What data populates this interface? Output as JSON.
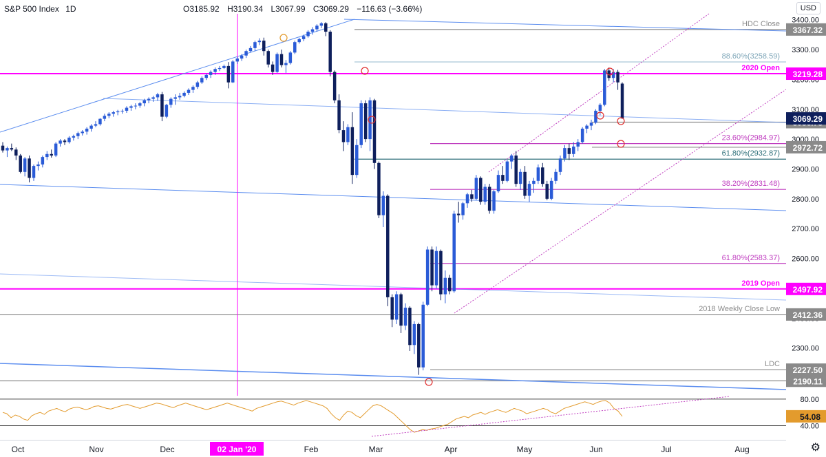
{
  "header": {
    "symbol": "S&P 500 Index",
    "interval": "1D",
    "open": "O3185.92",
    "high": "H3190.34",
    "low": "L3067.99",
    "close": "C3069.29",
    "change": "−116.63 (−3.66%)",
    "currency": "USD"
  },
  "colors": {
    "up": "#2a5bd7",
    "down": "#0e1f5c",
    "magenta": "#ff00ff",
    "fib": "#c03fc0",
    "teal": "#2c6e78",
    "gray": "#8c8c8c",
    "rsi": "#e39b2d",
    "trend": "#5b8def"
  },
  "chart_data": {
    "type": "candlestick",
    "title": "S&P 500 Index, 1D",
    "price_range": [
      2140,
      3420
    ],
    "x_labels": [
      "Oct",
      "Nov",
      "Dec",
      "Feb",
      "Mar",
      "Apr",
      "May",
      "Jun",
      "Jul",
      "Aug"
    ],
    "highlighted_x_label": "02 Jan '20",
    "y_ticks": [
      "3400.00",
      "3300.00",
      "3200.00",
      "3100.00",
      "3000.00",
      "2900.00",
      "2800.00",
      "2700.00",
      "2600.00",
      "2500.00",
      "2400.00",
      "2300.00",
      "2200.00"
    ],
    "levels": [
      {
        "price": 3367.32,
        "label": "HDC Close",
        "axis": "3367.32",
        "color": "#8c8c8c"
      },
      {
        "price": 3258.59,
        "label": "88.60%(3258.59)",
        "axis": "",
        "color": "#a9c8d6"
      },
      {
        "price": 3219.28,
        "label": "2020 Open",
        "axis": "3219.28",
        "color": "#ff00ff"
      },
      {
        "price": 3056.78,
        "label": "",
        "axis": "3056.78",
        "color": "#8c8c8c"
      },
      {
        "price": 2984.97,
        "label": "23.60%(2984.97)",
        "axis": "",
        "color": "#c03fc0"
      },
      {
        "price": 2972.72,
        "label": "",
        "axis": "2972.72",
        "color": "#8c8c8c"
      },
      {
        "price": 2932.87,
        "label": "61.80%(2932.87)",
        "axis": "",
        "color": "#2c6e78"
      },
      {
        "price": 2831.48,
        "label": "38.20%(2831.48)",
        "axis": "",
        "color": "#c03fc0"
      },
      {
        "price": 2583.37,
        "label": "61.80%(2583.37)",
        "axis": "",
        "color": "#c03fc0"
      },
      {
        "price": 2497.92,
        "label": "2019 Open",
        "axis": "2497.92",
        "color": "#ff00ff"
      },
      {
        "price": 2412.36,
        "label": "2018 Weekly Close Low",
        "axis": "2412.36",
        "color": "#8c8c8c"
      },
      {
        "price": 2227.5,
        "label": "LDC",
        "axis": "2227.50",
        "color": "#8c8c8c"
      },
      {
        "price": 2190.11,
        "label": "",
        "axis": "2190.11",
        "color": "#8c8c8c"
      }
    ],
    "last_price_tag": "3069.29",
    "rsi": {
      "ticks": [
        "80.00",
        "40.00"
      ],
      "last": "54.08",
      "range": [
        28,
        82
      ],
      "values": [
        60,
        58,
        52,
        56,
        54,
        50,
        48,
        55,
        58,
        60,
        57,
        62,
        64,
        66,
        63,
        61,
        65,
        67,
        68,
        66,
        64,
        66,
        69,
        70,
        68,
        66,
        65,
        67,
        69,
        71,
        72,
        70,
        68,
        66,
        68,
        70,
        72,
        74,
        73,
        71,
        69,
        67,
        70,
        72,
        74,
        72,
        70,
        68,
        66,
        64,
        66,
        68,
        70,
        72,
        74,
        72,
        70,
        68,
        66,
        64,
        62,
        66,
        68,
        70,
        72,
        74,
        76,
        77,
        75,
        73,
        71,
        74,
        76,
        78,
        76,
        74,
        72,
        70,
        66,
        58,
        52,
        48,
        56,
        62,
        60,
        55,
        52,
        58,
        64,
        70,
        72,
        70,
        66,
        62,
        58,
        52,
        46,
        40,
        34,
        30,
        32,
        34,
        33,
        35,
        36,
        38,
        40,
        42,
        46,
        50,
        52,
        54,
        52,
        56,
        58,
        60,
        57,
        60,
        62,
        64,
        62,
        60,
        63,
        66,
        64,
        62,
        58,
        60,
        62,
        64,
        66,
        64,
        60,
        58,
        62,
        66,
        68,
        70,
        72,
        74,
        76,
        74,
        72,
        75,
        77,
        78,
        74,
        66,
        62,
        54.08
      ]
    },
    "candles": [
      [
        2978,
        2990,
        2955,
        2962
      ],
      [
        2962,
        2975,
        2940,
        2970
      ],
      [
        2970,
        2985,
        2960,
        2965
      ],
      [
        2965,
        2972,
        2930,
        2945
      ],
      [
        2945,
        2950,
        2885,
        2890
      ],
      [
        2890,
        2940,
        2875,
        2935
      ],
      [
        2935,
        2945,
        2855,
        2870
      ],
      [
        2870,
        2915,
        2860,
        2910
      ],
      [
        2910,
        2925,
        2895,
        2915
      ],
      [
        2915,
        2945,
        2905,
        2940
      ],
      [
        2940,
        2960,
        2930,
        2950
      ],
      [
        2950,
        2965,
        2938,
        2945
      ],
      [
        2945,
        2990,
        2940,
        2985
      ],
      [
        2985,
        3000,
        2975,
        2995
      ],
      [
        2995,
        3000,
        2980,
        2990
      ],
      [
        2990,
        3010,
        2985,
        3005
      ],
      [
        3005,
        3015,
        2995,
        3010
      ],
      [
        3010,
        3025,
        3000,
        3020
      ],
      [
        3020,
        3030,
        3012,
        3025
      ],
      [
        3025,
        3040,
        3015,
        3035
      ],
      [
        3035,
        3050,
        3025,
        3045
      ],
      [
        3045,
        3060,
        3040,
        3050
      ],
      [
        3050,
        3070,
        3045,
        3068
      ],
      [
        3068,
        3085,
        3060,
        3078
      ],
      [
        3078,
        3090,
        3070,
        3085
      ],
      [
        3085,
        3095,
        3075,
        3090
      ],
      [
        3090,
        3098,
        3080,
        3093
      ],
      [
        3093,
        3100,
        3085,
        3095
      ],
      [
        3095,
        3110,
        3088,
        3105
      ],
      [
        3105,
        3115,
        3095,
        3110
      ],
      [
        3110,
        3120,
        3100,
        3112
      ],
      [
        3112,
        3125,
        3105,
        3120
      ],
      [
        3120,
        3135,
        3110,
        3130
      ],
      [
        3130,
        3140,
        3120,
        3135
      ],
      [
        3135,
        3145,
        3125,
        3140
      ],
      [
        3140,
        3155,
        3128,
        3150
      ],
      [
        3150,
        3158,
        3060,
        3075
      ],
      [
        3075,
        3118,
        3070,
        3115
      ],
      [
        3115,
        3140,
        3105,
        3135
      ],
      [
        3135,
        3150,
        3115,
        3140
      ],
      [
        3140,
        3155,
        3132,
        3145
      ],
      [
        3145,
        3160,
        3140,
        3155
      ],
      [
        3155,
        3170,
        3148,
        3165
      ],
      [
        3165,
        3180,
        3155,
        3175
      ],
      [
        3175,
        3195,
        3168,
        3190
      ],
      [
        3190,
        3210,
        3185,
        3205
      ],
      [
        3205,
        3220,
        3198,
        3215
      ],
      [
        3215,
        3230,
        3205,
        3225
      ],
      [
        3225,
        3240,
        3215,
        3235
      ],
      [
        3235,
        3245,
        3228,
        3238
      ],
      [
        3238,
        3250,
        3235,
        3245
      ],
      [
        3245,
        3258,
        3170,
        3190
      ],
      [
        3190,
        3265,
        3188,
        3260
      ],
      [
        3260,
        3275,
        3252,
        3270
      ],
      [
        3270,
        3285,
        3262,
        3280
      ],
      [
        3280,
        3300,
        3272,
        3295
      ],
      [
        3295,
        3312,
        3290,
        3305
      ],
      [
        3305,
        3330,
        3295,
        3325
      ],
      [
        3325,
        3338,
        3315,
        3330
      ],
      [
        3330,
        3340,
        3280,
        3295
      ],
      [
        3295,
        3300,
        3240,
        3250
      ],
      [
        3250,
        3260,
        3215,
        3225
      ],
      [
        3225,
        3290,
        3222,
        3285
      ],
      [
        3285,
        3300,
        3240,
        3248
      ],
      [
        3248,
        3265,
        3222,
        3255
      ],
      [
        3255,
        3295,
        3250,
        3290
      ],
      [
        3290,
        3330,
        3285,
        3325
      ],
      [
        3325,
        3340,
        3320,
        3335
      ],
      [
        3335,
        3350,
        3328,
        3345
      ],
      [
        3345,
        3365,
        3340,
        3360
      ],
      [
        3360,
        3375,
        3350,
        3368
      ],
      [
        3368,
        3385,
        3360,
        3380
      ],
      [
        3380,
        3392,
        3372,
        3388
      ],
      [
        3388,
        3392,
        3345,
        3360
      ],
      [
        3360,
        3365,
        3210,
        3225
      ],
      [
        3225,
        3230,
        3120,
        3130
      ],
      [
        3130,
        3150,
        3020,
        3030
      ],
      [
        3030,
        3060,
        2960,
        2990
      ],
      [
        2990,
        3050,
        2980,
        3040
      ],
      [
        3040,
        3090,
        2850,
        2880
      ],
      [
        2880,
        3000,
        2870,
        2980
      ],
      [
        2980,
        3130,
        2970,
        3120
      ],
      [
        3120,
        3130,
        2990,
        3000
      ],
      [
        3000,
        3140,
        2960,
        3130
      ],
      [
        3130,
        3135,
        2900,
        2920
      ],
      [
        2920,
        2925,
        2735,
        2745
      ],
      [
        2745,
        2825,
        2705,
        2810
      ],
      [
        2810,
        2815,
        2440,
        2470
      ],
      [
        2470,
        2480,
        2370,
        2395
      ],
      [
        2395,
        2490,
        2380,
        2480
      ],
      [
        2480,
        2485,
        2350,
        2375
      ],
      [
        2375,
        2450,
        2360,
        2435
      ],
      [
        2435,
        2440,
        2290,
        2310
      ],
      [
        2310,
        2390,
        2280,
        2380
      ],
      [
        2380,
        2385,
        2210,
        2235
      ],
      [
        2235,
        2455,
        2225,
        2445
      ],
      [
        2445,
        2640,
        2440,
        2630
      ],
      [
        2630,
        2640,
        2490,
        2510
      ],
      [
        2510,
        2640,
        2500,
        2625
      ],
      [
        2625,
        2630,
        2460,
        2480
      ],
      [
        2480,
        2560,
        2450,
        2535
      ],
      [
        2535,
        2545,
        2480,
        2490
      ],
      [
        2490,
        2760,
        2485,
        2750
      ],
      [
        2750,
        2790,
        2720,
        2745
      ],
      [
        2745,
        2790,
        2730,
        2785
      ],
      [
        2785,
        2820,
        2770,
        2815
      ],
      [
        2815,
        2830,
        2790,
        2800
      ],
      [
        2800,
        2880,
        2795,
        2870
      ],
      [
        2870,
        2875,
        2780,
        2790
      ],
      [
        2790,
        2850,
        2780,
        2840
      ],
      [
        2840,
        2850,
        2750,
        2760
      ],
      [
        2760,
        2830,
        2750,
        2825
      ],
      [
        2825,
        2895,
        2820,
        2880
      ],
      [
        2880,
        2910,
        2850,
        2860
      ],
      [
        2860,
        2930,
        2855,
        2925
      ],
      [
        2925,
        2950,
        2900,
        2945
      ],
      [
        2945,
        2960,
        2840,
        2850
      ],
      [
        2850,
        2900,
        2830,
        2890
      ],
      [
        2890,
        2910,
        2800,
        2810
      ],
      [
        2810,
        2860,
        2790,
        2850
      ],
      [
        2850,
        2870,
        2820,
        2860
      ],
      [
        2860,
        2915,
        2850,
        2905
      ],
      [
        2905,
        2920,
        2840,
        2850
      ],
      [
        2850,
        2860,
        2795,
        2800
      ],
      [
        2800,
        2870,
        2795,
        2860
      ],
      [
        2860,
        2900,
        2850,
        2890
      ],
      [
        2890,
        2945,
        2880,
        2935
      ],
      [
        2935,
        2980,
        2925,
        2970
      ],
      [
        2970,
        2985,
        2930,
        2950
      ],
      [
        2950,
        2990,
        2940,
        2975
      ],
      [
        2975,
        3000,
        2960,
        2990
      ],
      [
        2990,
        3040,
        2985,
        3035
      ],
      [
        3035,
        3050,
        3020,
        3045
      ],
      [
        3045,
        3065,
        3030,
        3055
      ],
      [
        3055,
        3100,
        3050,
        3095
      ],
      [
        3095,
        3120,
        3080,
        3115
      ],
      [
        3115,
        3235,
        3110,
        3230
      ],
      [
        3230,
        3240,
        3195,
        3205
      ],
      [
        3205,
        3235,
        3190,
        3225
      ],
      [
        3225,
        3232,
        3165,
        3190
      ],
      [
        3185.92,
        3190.34,
        3067.99,
        3069.29
      ]
    ]
  }
}
